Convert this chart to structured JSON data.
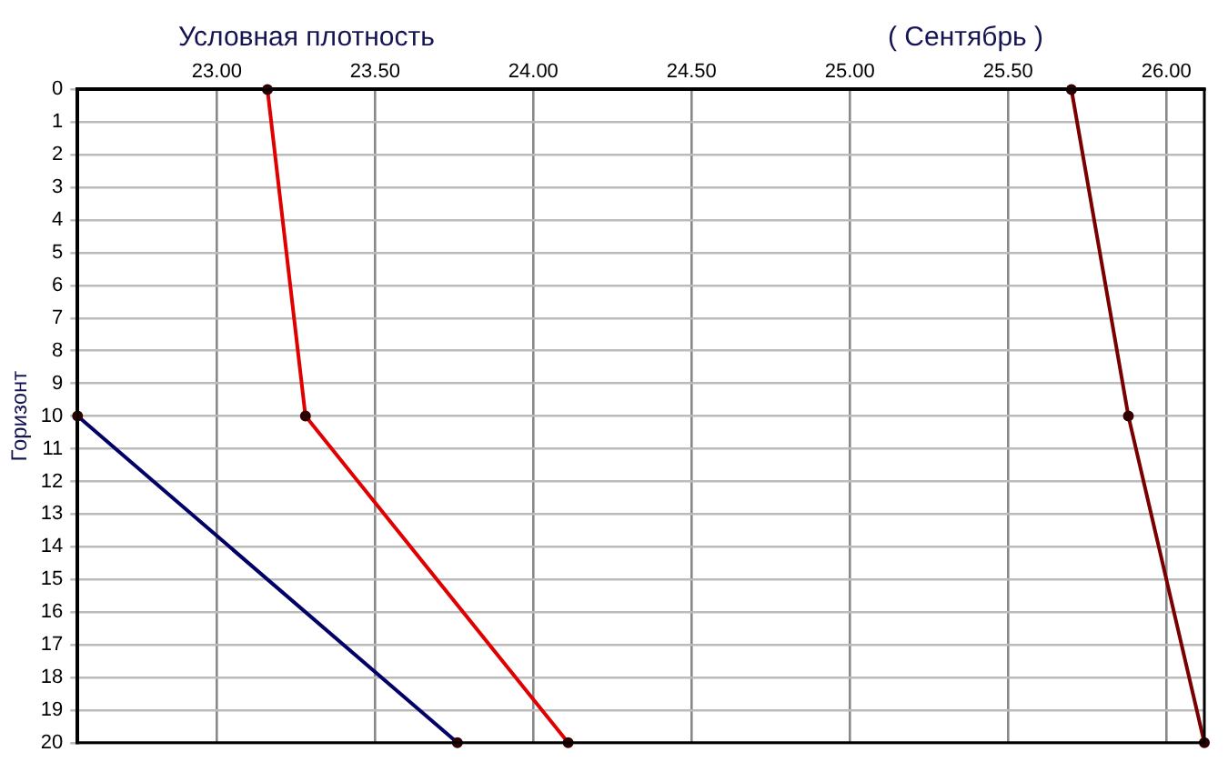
{
  "chart_data": {
    "type": "line",
    "title": "Условная плотность",
    "subtitle": "( Сентябрь )",
    "ylabel": "Горизонт",
    "xlim": [
      22.56,
      26.12
    ],
    "xticks": [
      {
        "value": 23,
        "label": "23.00"
      },
      {
        "value": 23.5,
        "label": "23.50"
      },
      {
        "value": 24,
        "label": "24.00"
      },
      {
        "value": 24.5,
        "label": "24.50"
      },
      {
        "value": 25,
        "label": "25.00"
      },
      {
        "value": 25.5,
        "label": "25.50"
      },
      {
        "value": 26,
        "label": "26.00"
      }
    ],
    "ylim": [
      20,
      0
    ],
    "yticks": [
      0,
      1,
      2,
      3,
      4,
      5,
      6,
      7,
      8,
      9,
      10,
      11,
      12,
      13,
      14,
      15,
      16,
      17,
      18,
      19,
      20
    ],
    "series": [
      {
        "color": "#e00000",
        "x": [
          23.16,
          23.28,
          24.11
        ],
        "values": [
          0,
          10,
          20
        ]
      },
      {
        "color": "#000066",
        "x": [
          22.56,
          23.76
        ],
        "values": [
          10,
          20
        ]
      },
      {
        "color": "#7a0000",
        "x": [
          25.7,
          25.88,
          26.12
        ],
        "values": [
          0,
          10,
          20
        ]
      }
    ],
    "grid": true,
    "legend": false,
    "marker": "circle",
    "line_style": "solid"
  }
}
